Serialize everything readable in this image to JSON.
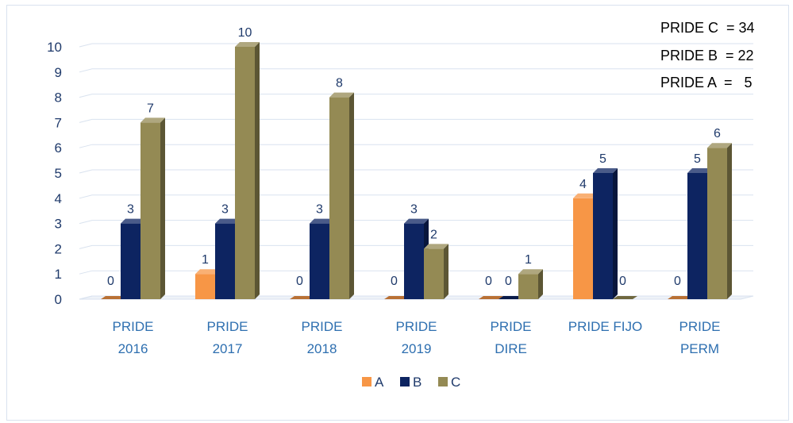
{
  "chart_data": {
    "type": "bar",
    "categories": [
      [
        "PRIDE",
        "2016"
      ],
      [
        "PRIDE",
        "2017"
      ],
      [
        "PRIDE",
        "2018"
      ],
      [
        "PRIDE",
        "2019"
      ],
      [
        "PRIDE",
        "DIRE"
      ],
      [
        "PRIDE FIJO"
      ],
      [
        "PRIDE",
        "PERM"
      ]
    ],
    "series": [
      {
        "name": "A",
        "color": "#f79646",
        "values": [
          0,
          1,
          0,
          0,
          0,
          4,
          0
        ]
      },
      {
        "name": "B",
        "color": "#0d2461",
        "values": [
          3,
          3,
          3,
          3,
          0,
          5,
          5
        ]
      },
      {
        "name": "C",
        "color": "#948a54",
        "values": [
          7,
          10,
          8,
          2,
          1,
          0,
          6
        ]
      }
    ],
    "ylim": [
      0,
      10
    ],
    "yticks": [
      0,
      1,
      2,
      3,
      4,
      5,
      6,
      7,
      8,
      9,
      10
    ],
    "grid": true,
    "legend": "bottom",
    "three_d": true,
    "annotations": [
      "PRIDE C  = 34",
      "PRIDE B  = 22",
      "PRIDE A  =   5"
    ]
  }
}
